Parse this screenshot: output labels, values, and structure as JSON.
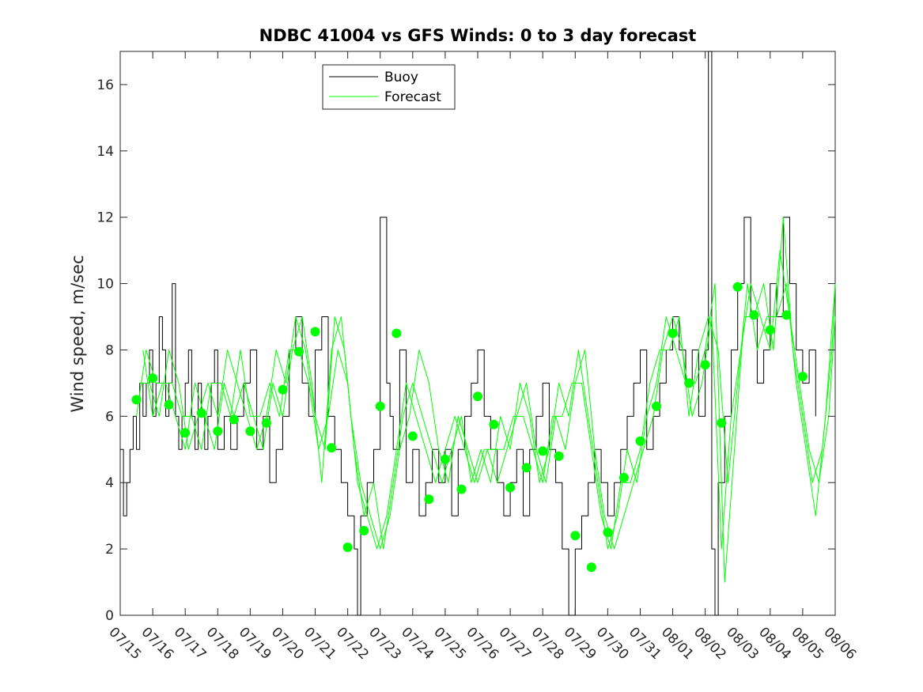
{
  "chart_data": {
    "type": "line",
    "title": "NDBC 41004 vs GFS Winds: 0 to 3 day forecast",
    "xlabel": "",
    "ylabel": "Wind speed, m/sec",
    "xlim": [
      "07/15",
      "08/06"
    ],
    "ylim": [
      0,
      17
    ],
    "x_ticks": [
      "07/15",
      "07/16",
      "07/17",
      "07/18",
      "07/19",
      "07/20",
      "07/21",
      "07/22",
      "07/23",
      "07/24",
      "07/25",
      "07/26",
      "07/27",
      "07/28",
      "07/29",
      "07/30",
      "07/31",
      "08/01",
      "08/02",
      "08/03",
      "08/04",
      "08/05",
      "08/06"
    ],
    "y_ticks": [
      0,
      2,
      4,
      6,
      8,
      10,
      12,
      14,
      16
    ],
    "grid": false,
    "legend": {
      "placement": "top-center",
      "entries": [
        {
          "name": "Buoy",
          "color": "#000000"
        },
        {
          "name": "Forecast",
          "color": "#00ff00"
        }
      ]
    },
    "series": [
      {
        "name": "Buoy",
        "color": "#000000",
        "style": "stairs",
        "x_days": [
          0.0,
          0.1,
          0.2,
          0.3,
          0.4,
          0.5,
          0.6,
          0.7,
          0.8,
          0.9,
          1.0,
          1.1,
          1.2,
          1.3,
          1.4,
          1.5,
          1.6,
          1.7,
          1.8,
          1.9,
          2.0,
          2.1,
          2.2,
          2.3,
          2.4,
          2.5,
          2.6,
          2.7,
          2.8,
          2.9,
          3.0,
          3.2,
          3.4,
          3.6,
          3.8,
          4.0,
          4.2,
          4.4,
          4.6,
          4.8,
          5.0,
          5.2,
          5.4,
          5.6,
          5.8,
          6.0,
          6.2,
          6.4,
          6.6,
          6.8,
          7.0,
          7.2,
          7.3,
          7.4,
          7.6,
          7.8,
          8.0,
          8.2,
          8.3,
          8.4,
          8.6,
          8.8,
          9.0,
          9.2,
          9.4,
          9.6,
          9.8,
          10.0,
          10.2,
          10.4,
          10.6,
          10.8,
          11.0,
          11.2,
          11.4,
          11.6,
          11.8,
          12.0,
          12.2,
          12.4,
          12.6,
          12.8,
          13.0,
          13.2,
          13.4,
          13.6,
          13.8,
          14.0,
          14.2,
          14.4,
          14.6,
          14.8,
          15.0,
          15.2,
          15.4,
          15.6,
          15.8,
          16.0,
          16.2,
          16.4,
          16.6,
          16.8,
          17.0,
          17.2,
          17.4,
          17.6,
          17.8,
          18.0,
          18.1,
          18.2,
          18.3,
          18.4,
          18.6,
          18.8,
          19.0,
          19.2,
          19.4,
          19.6,
          19.8,
          20.0,
          20.2,
          20.4,
          20.6,
          20.8,
          21.0,
          21.2,
          21.4
        ],
        "y": [
          5,
          3,
          4,
          5,
          6,
          5,
          7,
          6,
          7,
          8,
          6,
          7,
          9,
          8,
          6,
          7,
          10,
          6,
          5,
          6,
          7,
          8,
          6,
          5,
          7,
          6,
          5,
          6,
          7,
          8,
          5,
          6,
          5,
          6,
          7,
          8,
          5,
          6,
          4,
          5,
          6,
          8,
          9,
          7,
          6,
          8,
          9,
          6,
          5,
          4,
          3,
          2,
          0,
          3,
          4,
          5,
          12,
          7,
          6,
          5,
          8,
          4,
          5,
          3,
          4,
          5,
          4,
          5,
          3,
          5,
          6,
          7,
          8,
          6,
          5,
          4,
          3,
          4,
          5,
          3,
          5,
          6,
          7,
          5,
          4,
          2,
          0,
          2,
          3,
          4,
          5,
          4,
          3,
          4,
          5,
          6,
          7,
          8,
          5,
          6,
          7,
          8,
          9,
          8,
          7,
          8,
          6,
          8,
          17,
          2,
          0,
          4,
          6,
          8,
          10,
          12,
          9,
          7,
          8,
          10,
          9,
          12,
          10,
          8,
          7,
          8,
          6
        ]
      },
      {
        "name": "Forecast",
        "color": "#00ff00",
        "style": "line",
        "x_days": [
          0.5,
          0.8,
          1.1,
          1.4,
          1.7,
          2.0,
          2.3,
          2.6,
          2.9,
          3.2,
          3.5,
          3.8,
          4.1,
          4.4,
          4.7,
          5.0,
          5.3,
          5.6,
          5.9,
          6.2,
          6.5,
          6.8,
          7.1,
          7.4,
          7.7,
          8.0,
          8.3,
          8.6,
          8.9,
          9.2,
          9.5,
          9.8,
          10.1,
          10.4,
          10.7,
          11.0,
          11.3,
          11.6,
          11.9,
          12.2,
          12.5,
          12.8,
          13.1,
          13.4,
          13.7,
          14.0,
          14.3,
          14.6,
          14.9,
          15.2,
          15.5,
          15.8,
          16.1,
          16.4,
          16.7,
          17.0,
          17.3,
          17.6,
          17.9,
          18.2,
          18.5,
          18.8,
          19.1,
          19.4,
          19.7,
          20.0,
          20.3,
          20.6,
          20.9,
          21.2,
          21.5,
          21.8,
          22.0
        ],
        "y": [
          6,
          8,
          7,
          7,
          6,
          5,
          7,
          6,
          5,
          7,
          6,
          7,
          6,
          5,
          7,
          6,
          8,
          9,
          7,
          4,
          8,
          9,
          6,
          4,
          3,
          2,
          3,
          5,
          6,
          8,
          7,
          5,
          4,
          6,
          5,
          4,
          5,
          4,
          5,
          6,
          7,
          5,
          4,
          6,
          5,
          7,
          8,
          5,
          3,
          2,
          3,
          4,
          5,
          6,
          8,
          9,
          8,
          6,
          7,
          9,
          2,
          6,
          8,
          10,
          9,
          8,
          11,
          9,
          7,
          5,
          4,
          6,
          9
        ]
      },
      {
        "name": "Forecast",
        "color": "#00ff00",
        "style": "line",
        "x_days": [
          0.6,
          0.9,
          1.2,
          1.5,
          1.8,
          2.1,
          2.4,
          2.7,
          3.0,
          3.3,
          3.6,
          3.9,
          4.2,
          4.5,
          4.8,
          5.1,
          5.4,
          5.7,
          6.0,
          6.3,
          6.6,
          6.9,
          7.2,
          7.5,
          7.8,
          8.1,
          8.4,
          8.7,
          9.0,
          9.3,
          9.6,
          9.9,
          10.2,
          10.5,
          10.8,
          11.1,
          11.4,
          11.7,
          12.0,
          12.3,
          12.6,
          12.9,
          13.2,
          13.5,
          13.8,
          14.1,
          14.4,
          14.7,
          15.0,
          15.3,
          15.6,
          15.9,
          16.2,
          16.5,
          16.8,
          17.1,
          17.4,
          17.7,
          18.0,
          18.3,
          18.6,
          18.9,
          19.2,
          19.5,
          19.8,
          20.1,
          20.4,
          20.7,
          21.0,
          21.3,
          21.6,
          21.9,
          22.0
        ],
        "y": [
          7,
          7,
          6,
          8,
          7,
          5,
          6,
          7,
          6,
          8,
          7,
          6,
          5,
          6,
          8,
          7,
          9,
          8,
          6,
          5,
          9,
          8,
          5,
          3,
          4,
          2,
          4,
          6,
          7,
          6,
          5,
          4,
          5,
          6,
          4,
          5,
          4,
          6,
          5,
          7,
          6,
          4,
          5,
          7,
          6,
          8,
          6,
          4,
          2,
          3,
          5,
          4,
          6,
          7,
          9,
          8,
          7,
          7,
          8,
          10,
          1,
          5,
          9,
          9,
          10,
          8,
          12,
          8,
          6,
          4,
          5,
          8,
          10
        ]
      },
      {
        "name": "Forecast",
        "color": "#00ff00",
        "style": "line",
        "x_days": [
          0.7,
          1.0,
          1.3,
          1.6,
          1.9,
          2.2,
          2.5,
          2.8,
          3.1,
          3.4,
          3.7,
          4.0,
          4.3,
          4.6,
          4.9,
          5.2,
          5.5,
          5.8,
          6.1,
          6.4,
          6.7,
          7.0,
          7.3,
          7.6,
          7.9,
          8.2,
          8.5,
          8.8,
          9.1,
          9.4,
          9.7,
          10.0,
          10.3,
          10.6,
          10.9,
          11.2,
          11.5,
          11.8,
          12.1,
          12.4,
          12.7,
          13.0,
          13.3,
          13.6,
          13.9,
          14.2,
          14.5,
          14.8,
          15.1,
          15.4,
          15.7,
          16.0,
          16.3,
          16.6,
          16.9,
          17.2,
          17.5,
          17.8,
          18.1,
          18.4,
          18.7,
          19.0,
          19.3,
          19.6,
          19.9,
          20.2,
          20.5,
          20.8,
          21.1,
          21.4,
          21.7,
          22.0
        ],
        "y": [
          8,
          6,
          7,
          7,
          6,
          6,
          5,
          7,
          7,
          6,
          8,
          6,
          6,
          7,
          6,
          8,
          8,
          7,
          5,
          6,
          8,
          7,
          4,
          3,
          2,
          3,
          5,
          7,
          6,
          5,
          4,
          5,
          6,
          5,
          4,
          5,
          5,
          5,
          6,
          6,
          5,
          4,
          6,
          6,
          7,
          7,
          5,
          3,
          2,
          4,
          4,
          5,
          7,
          8,
          8,
          9,
          6,
          8,
          9,
          8,
          4,
          7,
          10,
          8,
          9,
          9,
          10,
          7,
          5,
          3,
          6,
          10
        ]
      }
    ],
    "markers": {
      "name": "Forecast",
      "color": "#00ff00",
      "points": [
        {
          "day": 0.5,
          "y": 6.5
        },
        {
          "day": 1.0,
          "y": 7.15
        },
        {
          "day": 1.5,
          "y": 6.35
        },
        {
          "day": 2.0,
          "y": 5.5
        },
        {
          "day": 2.5,
          "y": 6.1
        },
        {
          "day": 3.0,
          "y": 5.55
        },
        {
          "day": 3.5,
          "y": 5.9
        },
        {
          "day": 4.0,
          "y": 5.55
        },
        {
          "day": 4.5,
          "y": 5.8
        },
        {
          "day": 5.0,
          "y": 6.8
        },
        {
          "day": 5.5,
          "y": 7.95
        },
        {
          "day": 6.0,
          "y": 8.55
        },
        {
          "day": 6.5,
          "y": 5.05
        },
        {
          "day": 7.0,
          "y": 2.05
        },
        {
          "day": 7.5,
          "y": 2.55
        },
        {
          "day": 8.0,
          "y": 6.3
        },
        {
          "day": 8.5,
          "y": 8.5
        },
        {
          "day": 9.0,
          "y": 5.4
        },
        {
          "day": 9.5,
          "y": 3.5
        },
        {
          "day": 10.0,
          "y": 4.7
        },
        {
          "day": 10.5,
          "y": 3.8
        },
        {
          "day": 11.0,
          "y": 6.6
        },
        {
          "day": 11.5,
          "y": 5.75
        },
        {
          "day": 12.0,
          "y": 3.85
        },
        {
          "day": 12.5,
          "y": 4.45
        },
        {
          "day": 13.0,
          "y": 4.95
        },
        {
          "day": 13.5,
          "y": 4.8
        },
        {
          "day": 14.0,
          "y": 2.4
        },
        {
          "day": 14.5,
          "y": 1.45
        },
        {
          "day": 15.0,
          "y": 2.5
        },
        {
          "day": 15.5,
          "y": 4.15
        },
        {
          "day": 16.0,
          "y": 5.25
        },
        {
          "day": 16.5,
          "y": 6.3
        },
        {
          "day": 17.0,
          "y": 8.5
        },
        {
          "day": 17.5,
          "y": 7.0
        },
        {
          "day": 18.0,
          "y": 7.55
        },
        {
          "day": 18.5,
          "y": 5.8
        },
        {
          "day": 19.0,
          "y": 9.9
        },
        {
          "day": 19.5,
          "y": 9.05
        },
        {
          "day": 20.0,
          "y": 8.6
        },
        {
          "day": 20.5,
          "y": 9.05
        },
        {
          "day": 21.0,
          "y": 7.2
        }
      ]
    }
  }
}
